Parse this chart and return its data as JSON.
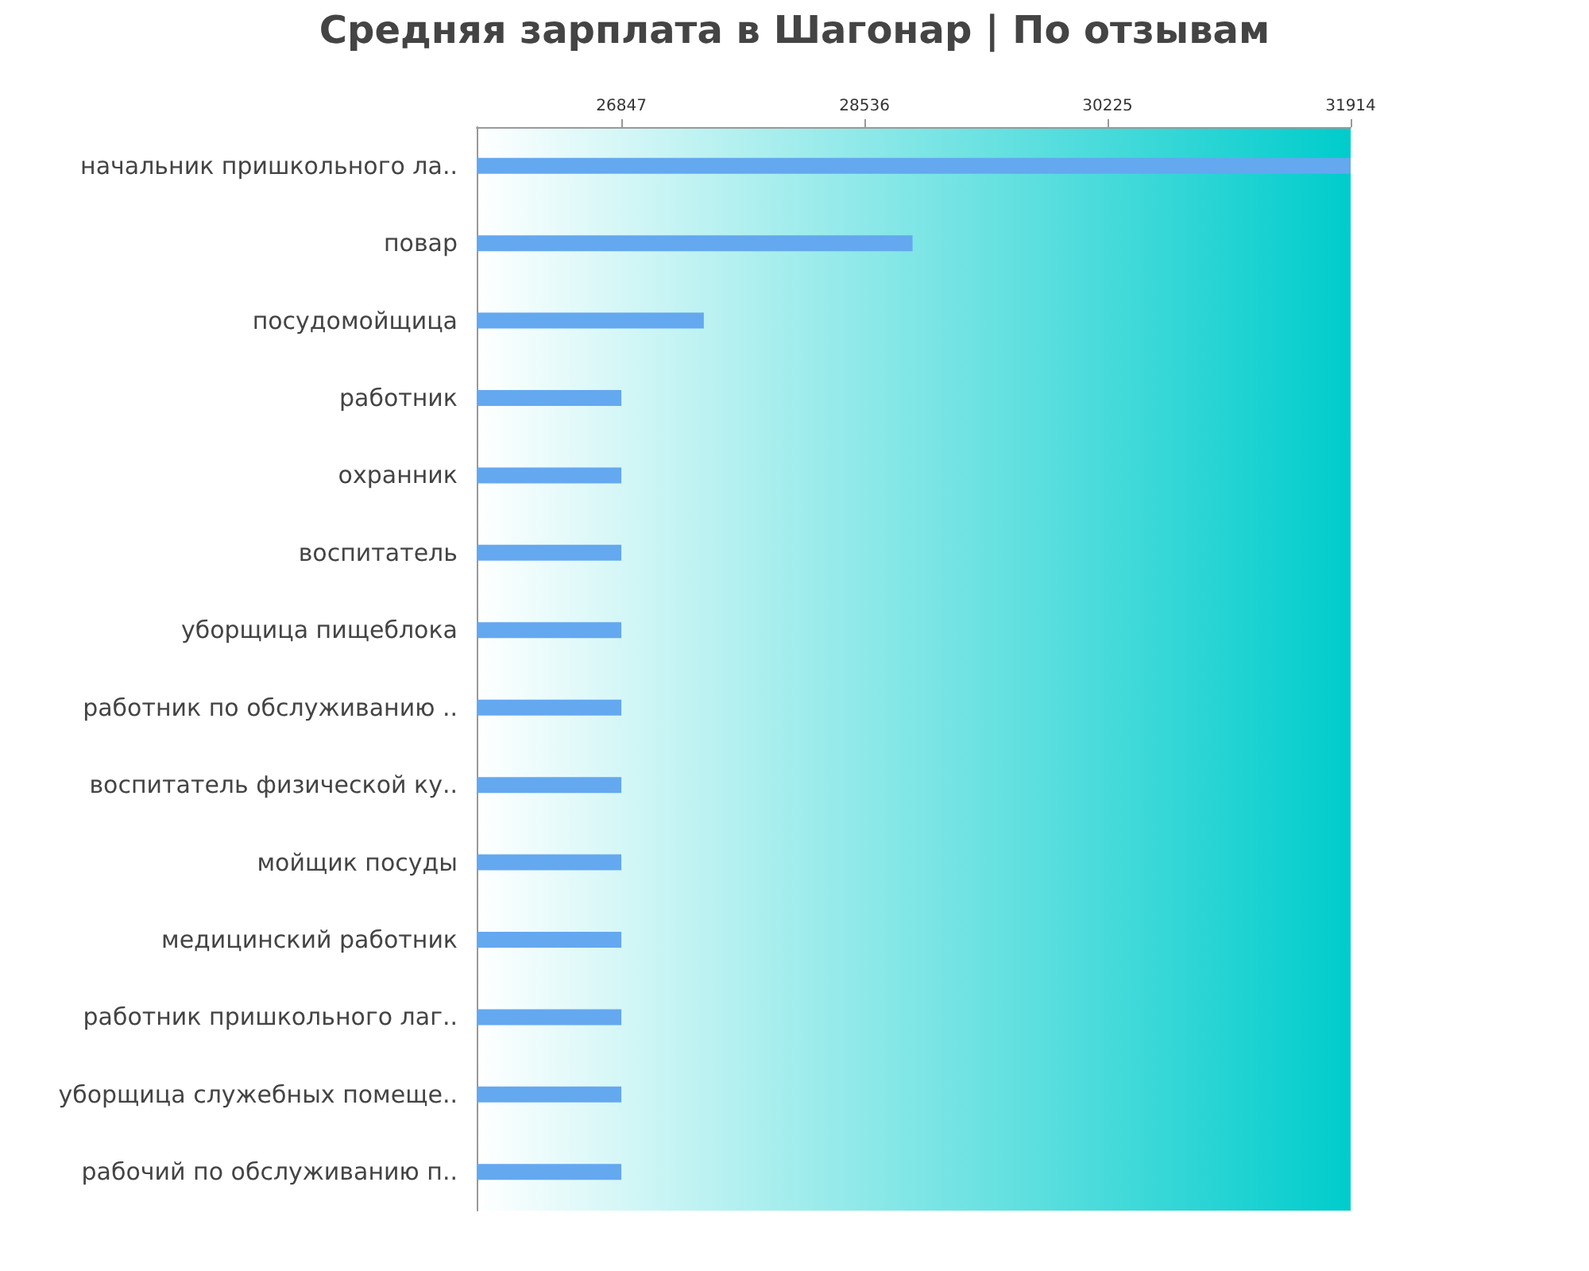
{
  "chart_data": {
    "type": "bar",
    "orientation": "horizontal",
    "title": "Средняя зарплата в Шагонар | По отзывам",
    "categories": [
      "начальник пришкольного ла..",
      "повар",
      "посудомойщица",
      "работник",
      "охранник",
      "воспитатель",
      "уборщица пищеблока",
      "работник по обслуживанию ..",
      "воспитатель физической ку..",
      "мойщик посуды",
      "медицинский работник",
      "работник пришкольного лаг..",
      "уборщица служебных помеще..",
      "рабочий по обслуживанию п.."
    ],
    "values": [
      31914,
      28870,
      27420,
      26847,
      26847,
      26847,
      26847,
      26847,
      26847,
      26847,
      26847,
      26847,
      26847,
      26847
    ],
    "color": "#64a8f0",
    "xlim": [
      25842,
      31914
    ],
    "xticks": [
      26847,
      28536,
      30225,
      31914
    ],
    "grid": false
  }
}
